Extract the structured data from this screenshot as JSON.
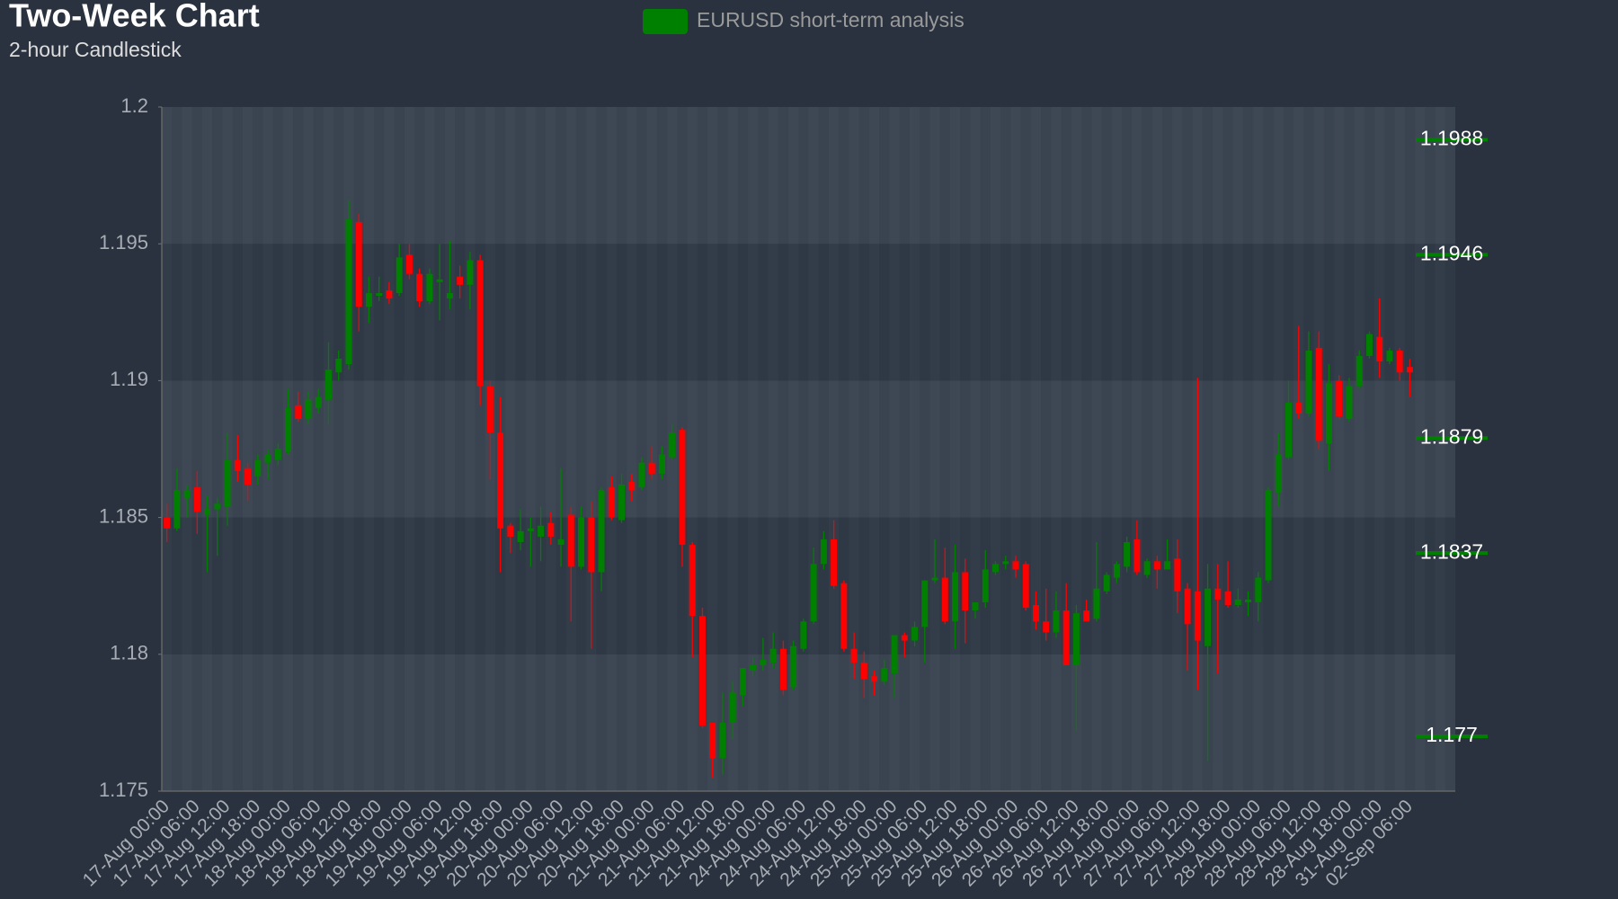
{
  "chart_data": {
    "type": "candlestick",
    "title": "Two-Week Chart",
    "subtitle": "2-hour Candlestick",
    "categories": [
      "17-Aug 00:00",
      null,
      null,
      "17-Aug 06:00",
      null,
      null,
      "17-Aug 12:00",
      null,
      null,
      "17-Aug 18:00",
      null,
      null,
      "18-Aug 00:00",
      null,
      null,
      "18-Aug 06:00",
      null,
      null,
      "18-Aug 12:00",
      null,
      null,
      "18-Aug 18:00",
      null,
      null,
      "19-Aug 00:00",
      null,
      null,
      "19-Aug 06:00",
      null,
      null,
      "19-Aug 12:00",
      null,
      null,
      "19-Aug 18:00",
      null,
      null,
      "20-Aug 00:00",
      null,
      null,
      "20-Aug 06:00",
      null,
      null,
      "20-Aug 12:00",
      null,
      null,
      "20-Aug 18:00",
      null,
      null,
      "21-Aug 00:00",
      null,
      null,
      "21-Aug 06:00",
      null,
      null,
      "21-Aug 12:00",
      null,
      null,
      "21-Aug 18:00",
      null,
      null,
      "24-Aug 00:00",
      null,
      null,
      "24-Aug 06:00",
      null,
      null,
      "24-Aug 12:00",
      null,
      null,
      "24-Aug 18:00",
      null,
      null,
      "25-Aug 00:00",
      null,
      null,
      "25-Aug 06:00",
      null,
      null,
      "25-Aug 12:00",
      null,
      null,
      "25-Aug 18:00",
      null,
      null,
      "26-Aug 00:00",
      null,
      null,
      "26-Aug 06:00",
      null,
      null,
      "26-Aug 12:00",
      null,
      null,
      "26-Aug 18:00",
      null,
      null,
      "27-Aug 00:00",
      null,
      null,
      "27-Aug 06:00",
      null,
      null,
      "27-Aug 12:00",
      null,
      null,
      "27-Aug 18:00",
      null,
      null,
      "28-Aug 00:00",
      null,
      null,
      "28-Aug 06:00",
      null,
      null,
      "28-Aug 12:00",
      null,
      null,
      "28-Aug 18:00",
      null,
      null,
      "31-Aug 00:00",
      null,
      null,
      "02-Sep 06:00",
      null,
      null,
      null,
      null
    ],
    "series": [
      {
        "name": "EURUSD short-term analysis",
        "color": "#008000",
        "down_color": "#ff0000",
        "open": [
          1.185,
          1.1846,
          1.1857,
          1.1861,
          1.1851,
          1.1853,
          1.1854,
          1.1871,
          1.1868,
          1.1865,
          1.187,
          1.1871,
          1.1874,
          1.1891,
          1.1886,
          1.189,
          1.1893,
          1.1903,
          1.1906,
          1.1958,
          1.1927,
          1.1931,
          1.1933,
          1.1932,
          1.1946,
          1.1939,
          1.1929,
          1.1936,
          1.193,
          1.1938,
          1.1935,
          1.1944,
          1.1898,
          1.1881,
          1.1847,
          1.1841,
          1.1845,
          1.1843,
          1.1848,
          1.184,
          1.1851,
          1.1832,
          1.185,
          1.183,
          1.1861,
          1.1849,
          1.1863,
          1.1861,
          1.187,
          1.1866,
          1.1872,
          1.1882,
          1.184,
          1.1814,
          1.1775,
          1.1762,
          1.1775,
          1.1785,
          1.1794,
          1.1796,
          1.1797,
          1.1802,
          1.1788,
          1.1802,
          1.1812,
          1.1833,
          1.1842,
          1.1826,
          1.1802,
          1.1797,
          1.1792,
          1.179,
          1.1793,
          1.1807,
          1.1805,
          1.181,
          1.1827,
          1.1828,
          1.1812,
          1.183,
          1.1816,
          1.1819,
          1.183,
          1.1833,
          1.1834,
          1.1833,
          1.1818,
          1.1812,
          1.1808,
          1.1816,
          1.1796,
          1.1816,
          1.1813,
          1.1823,
          1.1828,
          1.1832,
          1.1842,
          1.1829,
          1.1834,
          1.1831,
          1.1835,
          1.1824,
          1.1823,
          1.1803,
          1.1824,
          1.1823,
          1.1818,
          1.1819,
          1.1819,
          1.1827,
          1.1859,
          1.1872,
          1.1892,
          1.1888,
          1.1912,
          1.1877,
          1.19,
          1.1886,
          1.1898,
          1.1909,
          1.1916,
          1.1907,
          1.1911,
          1.1905,
          null,
          null,
          null,
          null
        ],
        "high": [
          1.1855,
          1.1868,
          1.1862,
          1.1867,
          1.1858,
          1.1857,
          1.1881,
          1.188,
          1.187,
          1.1873,
          1.1875,
          1.1877,
          1.1897,
          1.1896,
          1.1896,
          1.1897,
          1.1914,
          1.1911,
          1.1966,
          1.1961,
          1.1938,
          1.1938,
          1.1936,
          1.195,
          1.195,
          1.1941,
          1.1941,
          1.195,
          1.1951,
          1.1942,
          1.1947,
          1.1946,
          1.19,
          1.1894,
          1.1848,
          1.1853,
          1.185,
          1.1854,
          1.1852,
          1.1868,
          1.1854,
          1.1854,
          1.1856,
          1.1861,
          1.1865,
          1.1866,
          1.1866,
          1.1872,
          1.1876,
          1.1876,
          1.1884,
          1.1883,
          1.1841,
          1.1817,
          1.1775,
          1.1786,
          1.179,
          1.1795,
          1.1799,
          1.1806,
          1.1808,
          1.1805,
          1.1805,
          1.1813,
          1.1839,
          1.1845,
          1.1849,
          1.1827,
          1.1808,
          1.1801,
          1.1794,
          1.1798,
          1.1807,
          1.1808,
          1.1812,
          1.1827,
          1.1842,
          1.1839,
          1.184,
          1.1835,
          1.1818,
          1.1838,
          1.1834,
          1.1836,
          1.1836,
          1.1834,
          1.1823,
          1.1824,
          1.1823,
          1.1826,
          1.1818,
          1.182,
          1.1841,
          1.183,
          1.1834,
          1.1843,
          1.1849,
          1.1835,
          1.1836,
          1.1842,
          1.1842,
          1.1826,
          1.1901,
          1.1833,
          1.1833,
          1.1834,
          1.1824,
          1.1823,
          1.183,
          1.1861,
          1.1881,
          1.19,
          1.192,
          1.1918,
          1.1918,
          1.1906,
          1.1902,
          1.1901,
          1.1911,
          1.1918,
          1.193,
          1.1912,
          1.1912,
          1.1908,
          null,
          null,
          null,
          null
        ],
        "low": [
          1.1841,
          1.1845,
          1.185,
          1.1844,
          1.183,
          1.1836,
          1.1847,
          1.1863,
          1.1856,
          1.1862,
          1.1864,
          1.1869,
          1.1873,
          1.1885,
          1.1884,
          1.1888,
          1.1884,
          1.19,
          1.1904,
          1.1918,
          1.1921,
          1.1929,
          1.1928,
          1.1931,
          1.1937,
          1.1927,
          1.1928,
          1.1922,
          1.1926,
          1.193,
          1.1926,
          1.1891,
          1.1864,
          1.183,
          1.1837,
          1.1838,
          1.1832,
          1.1834,
          1.184,
          1.1832,
          1.1812,
          1.1831,
          1.1802,
          1.1823,
          1.1849,
          1.1848,
          1.1856,
          1.186,
          1.1864,
          1.1864,
          1.1871,
          1.1832,
          1.1799,
          1.1773,
          1.1755,
          1.1756,
          1.1769,
          1.1781,
          1.1792,
          1.1794,
          1.1795,
          1.1785,
          1.1787,
          1.1801,
          1.1811,
          1.1831,
          1.1824,
          1.1801,
          1.1791,
          1.1784,
          1.1785,
          1.1789,
          1.1784,
          1.1799,
          1.1803,
          1.1797,
          1.1826,
          1.1811,
          1.1802,
          1.1804,
          1.1813,
          1.1817,
          1.1829,
          1.1831,
          1.1828,
          1.1816,
          1.1809,
          1.1805,
          1.1806,
          1.1796,
          1.1772,
          1.1812,
          1.1812,
          1.1822,
          1.1826,
          1.183,
          1.1829,
          1.1828,
          1.1824,
          1.1831,
          1.1815,
          1.1794,
          1.1787,
          1.1761,
          1.1793,
          1.1817,
          1.1817,
          1.1814,
          1.1812,
          1.1826,
          1.1854,
          1.1871,
          1.1886,
          1.1887,
          1.1875,
          1.1867,
          1.1886,
          1.1885,
          1.1897,
          1.1908,
          1.1901,
          1.1906,
          1.19,
          1.1894,
          null,
          null,
          null,
          null
        ],
        "close": [
          1.1846,
          1.186,
          1.186,
          1.1852,
          1.1853,
          1.1855,
          1.1871,
          1.1867,
          1.1862,
          1.1871,
          1.1873,
          1.1875,
          1.189,
          1.1886,
          1.1893,
          1.1894,
          1.1904,
          1.1908,
          1.1959,
          1.1927,
          1.1932,
          1.1932,
          1.193,
          1.1945,
          1.1939,
          1.1929,
          1.1939,
          1.1937,
          1.1932,
          1.1935,
          1.1944,
          1.1898,
          1.1881,
          1.1846,
          1.1843,
          1.1845,
          1.1846,
          1.1847,
          1.1843,
          1.1842,
          1.1832,
          1.185,
          1.183,
          1.186,
          1.185,
          1.1862,
          1.186,
          1.187,
          1.1866,
          1.1873,
          1.1881,
          1.184,
          1.1814,
          1.1774,
          1.1762,
          1.1775,
          1.1786,
          1.1795,
          1.1796,
          1.1798,
          1.1802,
          1.1787,
          1.1803,
          1.1812,
          1.1833,
          1.1842,
          1.1825,
          1.1802,
          1.1797,
          1.1791,
          1.179,
          1.1795,
          1.1807,
          1.1805,
          1.181,
          1.1827,
          1.1828,
          1.1812,
          1.183,
          1.1816,
          1.1819,
          1.1831,
          1.1833,
          1.1834,
          1.1831,
          1.1817,
          1.1812,
          1.1808,
          1.1816,
          1.1796,
          1.1815,
          1.1812,
          1.1824,
          1.1829,
          1.1833,
          1.1841,
          1.183,
          1.1834,
          1.1831,
          1.1834,
          1.1823,
          1.1811,
          1.1805,
          1.1824,
          1.182,
          1.1818,
          1.182,
          1.182,
          1.1828,
          1.186,
          1.1873,
          1.1892,
          1.1888,
          1.1911,
          1.1878,
          1.1899,
          1.1887,
          1.1898,
          1.1909,
          1.1917,
          1.1907,
          1.1911,
          1.1903,
          1.1903,
          null,
          null,
          null,
          null
        ]
      }
    ],
    "ylim": [
      1.175,
      1.2
    ],
    "yticks": [
      1.175,
      1.18,
      1.185,
      1.19,
      1.195,
      1.2
    ],
    "levels": [
      1.1988,
      1.1946,
      1.1879,
      1.1837,
      1.177
    ],
    "level_color": "#008000",
    "legend": "top"
  }
}
